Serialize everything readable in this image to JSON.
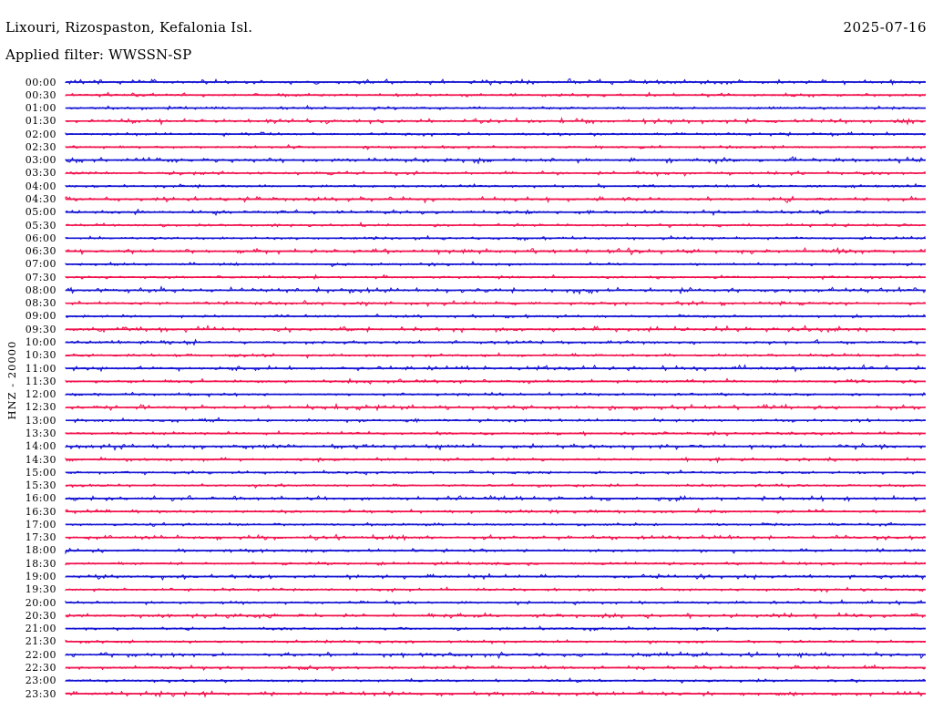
{
  "header": {
    "title": "Lixouri, Rizospaston, Kefalonia Isl.",
    "date": "2025-07-16",
    "filter_line": "Applied filter: WWSSN-SP"
  },
  "chart_data": {
    "type": "line",
    "subtype": "helicorder-dayplot",
    "title": "Lixouri, Rizospaston, Kefalonia Isl.",
    "date": "2025-07-16",
    "applied_filter": "WWSSN-SP",
    "channel_scale_label": "HNZ - 20000",
    "minutes_per_row": 30,
    "x_axis": {
      "row_duration_minutes": 30,
      "tick_interval_minutes": 30
    },
    "legend": "none",
    "grid": false,
    "colors": {
      "blue": "#1414d4",
      "red": "#f2124e",
      "text": "#000000",
      "background": "#ffffff"
    },
    "description": "48 half-hour traces of flat background microseismic noise, no visible events; alternating blue/red traces; noise_amp is approximate half-amplitude in pixels",
    "rows": [
      {
        "time": "00:00",
        "color": "blue",
        "noise_amp": 2.4
      },
      {
        "time": "00:30",
        "color": "red",
        "noise_amp": 1.5
      },
      {
        "time": "01:00",
        "color": "blue",
        "noise_amp": 1.3
      },
      {
        "time": "01:30",
        "color": "red",
        "noise_amp": 2.4
      },
      {
        "time": "02:00",
        "color": "blue",
        "noise_amp": 1.5
      },
      {
        "time": "02:30",
        "color": "red",
        "noise_amp": 1.2
      },
      {
        "time": "03:00",
        "color": "blue",
        "noise_amp": 2.4
      },
      {
        "time": "03:30",
        "color": "red",
        "noise_amp": 1.7
      },
      {
        "time": "04:00",
        "color": "blue",
        "noise_amp": 1.2
      },
      {
        "time": "04:30",
        "color": "red",
        "noise_amp": 2.4
      },
      {
        "time": "05:00",
        "color": "blue",
        "noise_amp": 1.8
      },
      {
        "time": "05:30",
        "color": "red",
        "noise_amp": 1.4
      },
      {
        "time": "06:00",
        "color": "blue",
        "noise_amp": 1.2
      },
      {
        "time": "06:30",
        "color": "red",
        "noise_amp": 2.5
      },
      {
        "time": "07:00",
        "color": "blue",
        "noise_amp": 1.4
      },
      {
        "time": "07:30",
        "color": "red",
        "noise_amp": 1.2
      },
      {
        "time": "08:00",
        "color": "blue",
        "noise_amp": 2.5
      },
      {
        "time": "08:30",
        "color": "red",
        "noise_amp": 1.8
      },
      {
        "time": "09:00",
        "color": "blue",
        "noise_amp": 1.2
      },
      {
        "time": "09:30",
        "color": "red",
        "noise_amp": 2.5
      },
      {
        "time": "10:00",
        "color": "blue",
        "noise_amp": 1.5
      },
      {
        "time": "10:30",
        "color": "red",
        "noise_amp": 1.4
      },
      {
        "time": "11:00",
        "color": "blue",
        "noise_amp": 2.4
      },
      {
        "time": "11:30",
        "color": "red",
        "noise_amp": 1.7
      },
      {
        "time": "12:00",
        "color": "blue",
        "noise_amp": 1.2
      },
      {
        "time": "12:30",
        "color": "red",
        "noise_amp": 2.4
      },
      {
        "time": "13:00",
        "color": "blue",
        "noise_amp": 1.6
      },
      {
        "time": "13:30",
        "color": "red",
        "noise_amp": 1.3
      },
      {
        "time": "14:00",
        "color": "blue",
        "noise_amp": 2.4
      },
      {
        "time": "14:30",
        "color": "red",
        "noise_amp": 1.7
      },
      {
        "time": "15:00",
        "color": "blue",
        "noise_amp": 1.2
      },
      {
        "time": "15:30",
        "color": "red",
        "noise_amp": 1.3
      },
      {
        "time": "16:00",
        "color": "blue",
        "noise_amp": 2.4
      },
      {
        "time": "16:30",
        "color": "red",
        "noise_amp": 1.7
      },
      {
        "time": "17:00",
        "color": "blue",
        "noise_amp": 1.2
      },
      {
        "time": "17:30",
        "color": "red",
        "noise_amp": 2.3
      },
      {
        "time": "18:00",
        "color": "blue",
        "noise_amp": 1.5
      },
      {
        "time": "18:30",
        "color": "red",
        "noise_amp": 1.3
      },
      {
        "time": "19:00",
        "color": "blue",
        "noise_amp": 2.3
      },
      {
        "time": "19:30",
        "color": "red",
        "noise_amp": 1.4
      },
      {
        "time": "20:00",
        "color": "blue",
        "noise_amp": 1.5
      },
      {
        "time": "20:30",
        "color": "red",
        "noise_amp": 2.3
      },
      {
        "time": "21:00",
        "color": "blue",
        "noise_amp": 1.2
      },
      {
        "time": "21:30",
        "color": "red",
        "noise_amp": 1.3
      },
      {
        "time": "22:00",
        "color": "blue",
        "noise_amp": 2.4
      },
      {
        "time": "22:30",
        "color": "red",
        "noise_amp": 1.8
      },
      {
        "time": "23:00",
        "color": "blue",
        "noise_amp": 1.2
      },
      {
        "time": "23:30",
        "color": "red",
        "noise_amp": 2.4
      }
    ]
  }
}
